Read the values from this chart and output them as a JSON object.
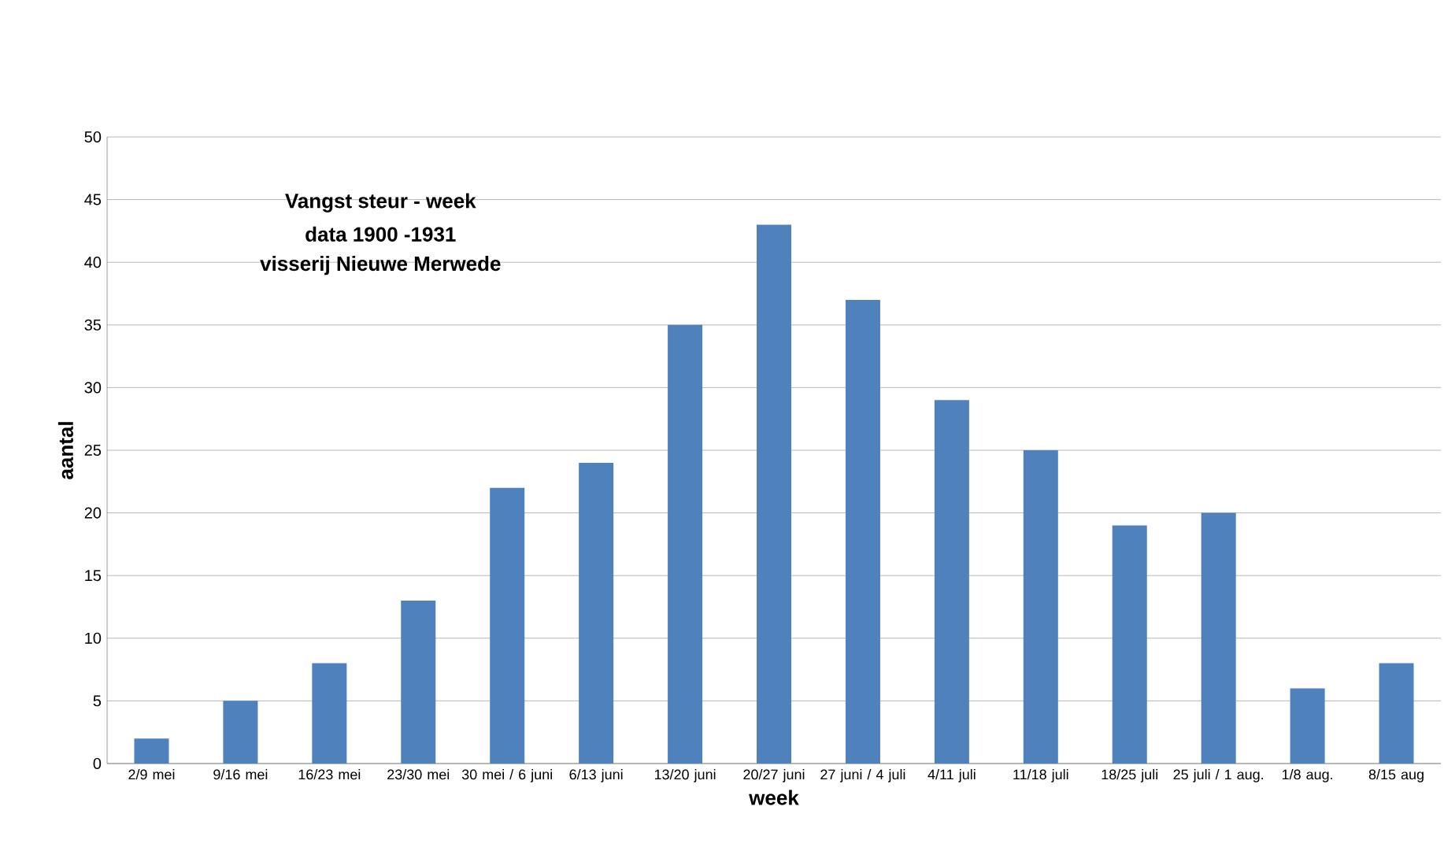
{
  "chart_data": {
    "type": "bar",
    "title": "Vangst steur - week",
    "subtitle": "data 1900 -1931",
    "annotations": [
      "visserij Nieuwe Merwede"
    ],
    "xlabel": "week",
    "ylabel": "aantal",
    "categories": [
      "2/9 mei",
      "9/16 mei",
      "16/23 mei",
      "23/30 mei",
      "30 mei / 6 juni",
      "6/13 juni",
      "13/20 juni",
      "20/27 juni",
      "27 juni / 4 juli",
      "4/11 juli",
      "11/18 juli",
      "18/25 juli",
      "25 juli / 1 aug.",
      "1/8 aug.",
      "8/15 aug"
    ],
    "values": [
      2,
      5,
      8,
      13,
      22,
      24,
      35,
      43,
      37,
      29,
      25,
      19,
      20,
      6,
      8
    ],
    "color": "#4f81bd",
    "ylim": [
      0,
      50
    ],
    "yticks": [
      0,
      5,
      10,
      15,
      20,
      25,
      30,
      35,
      40,
      45,
      50
    ],
    "grid": "y"
  }
}
